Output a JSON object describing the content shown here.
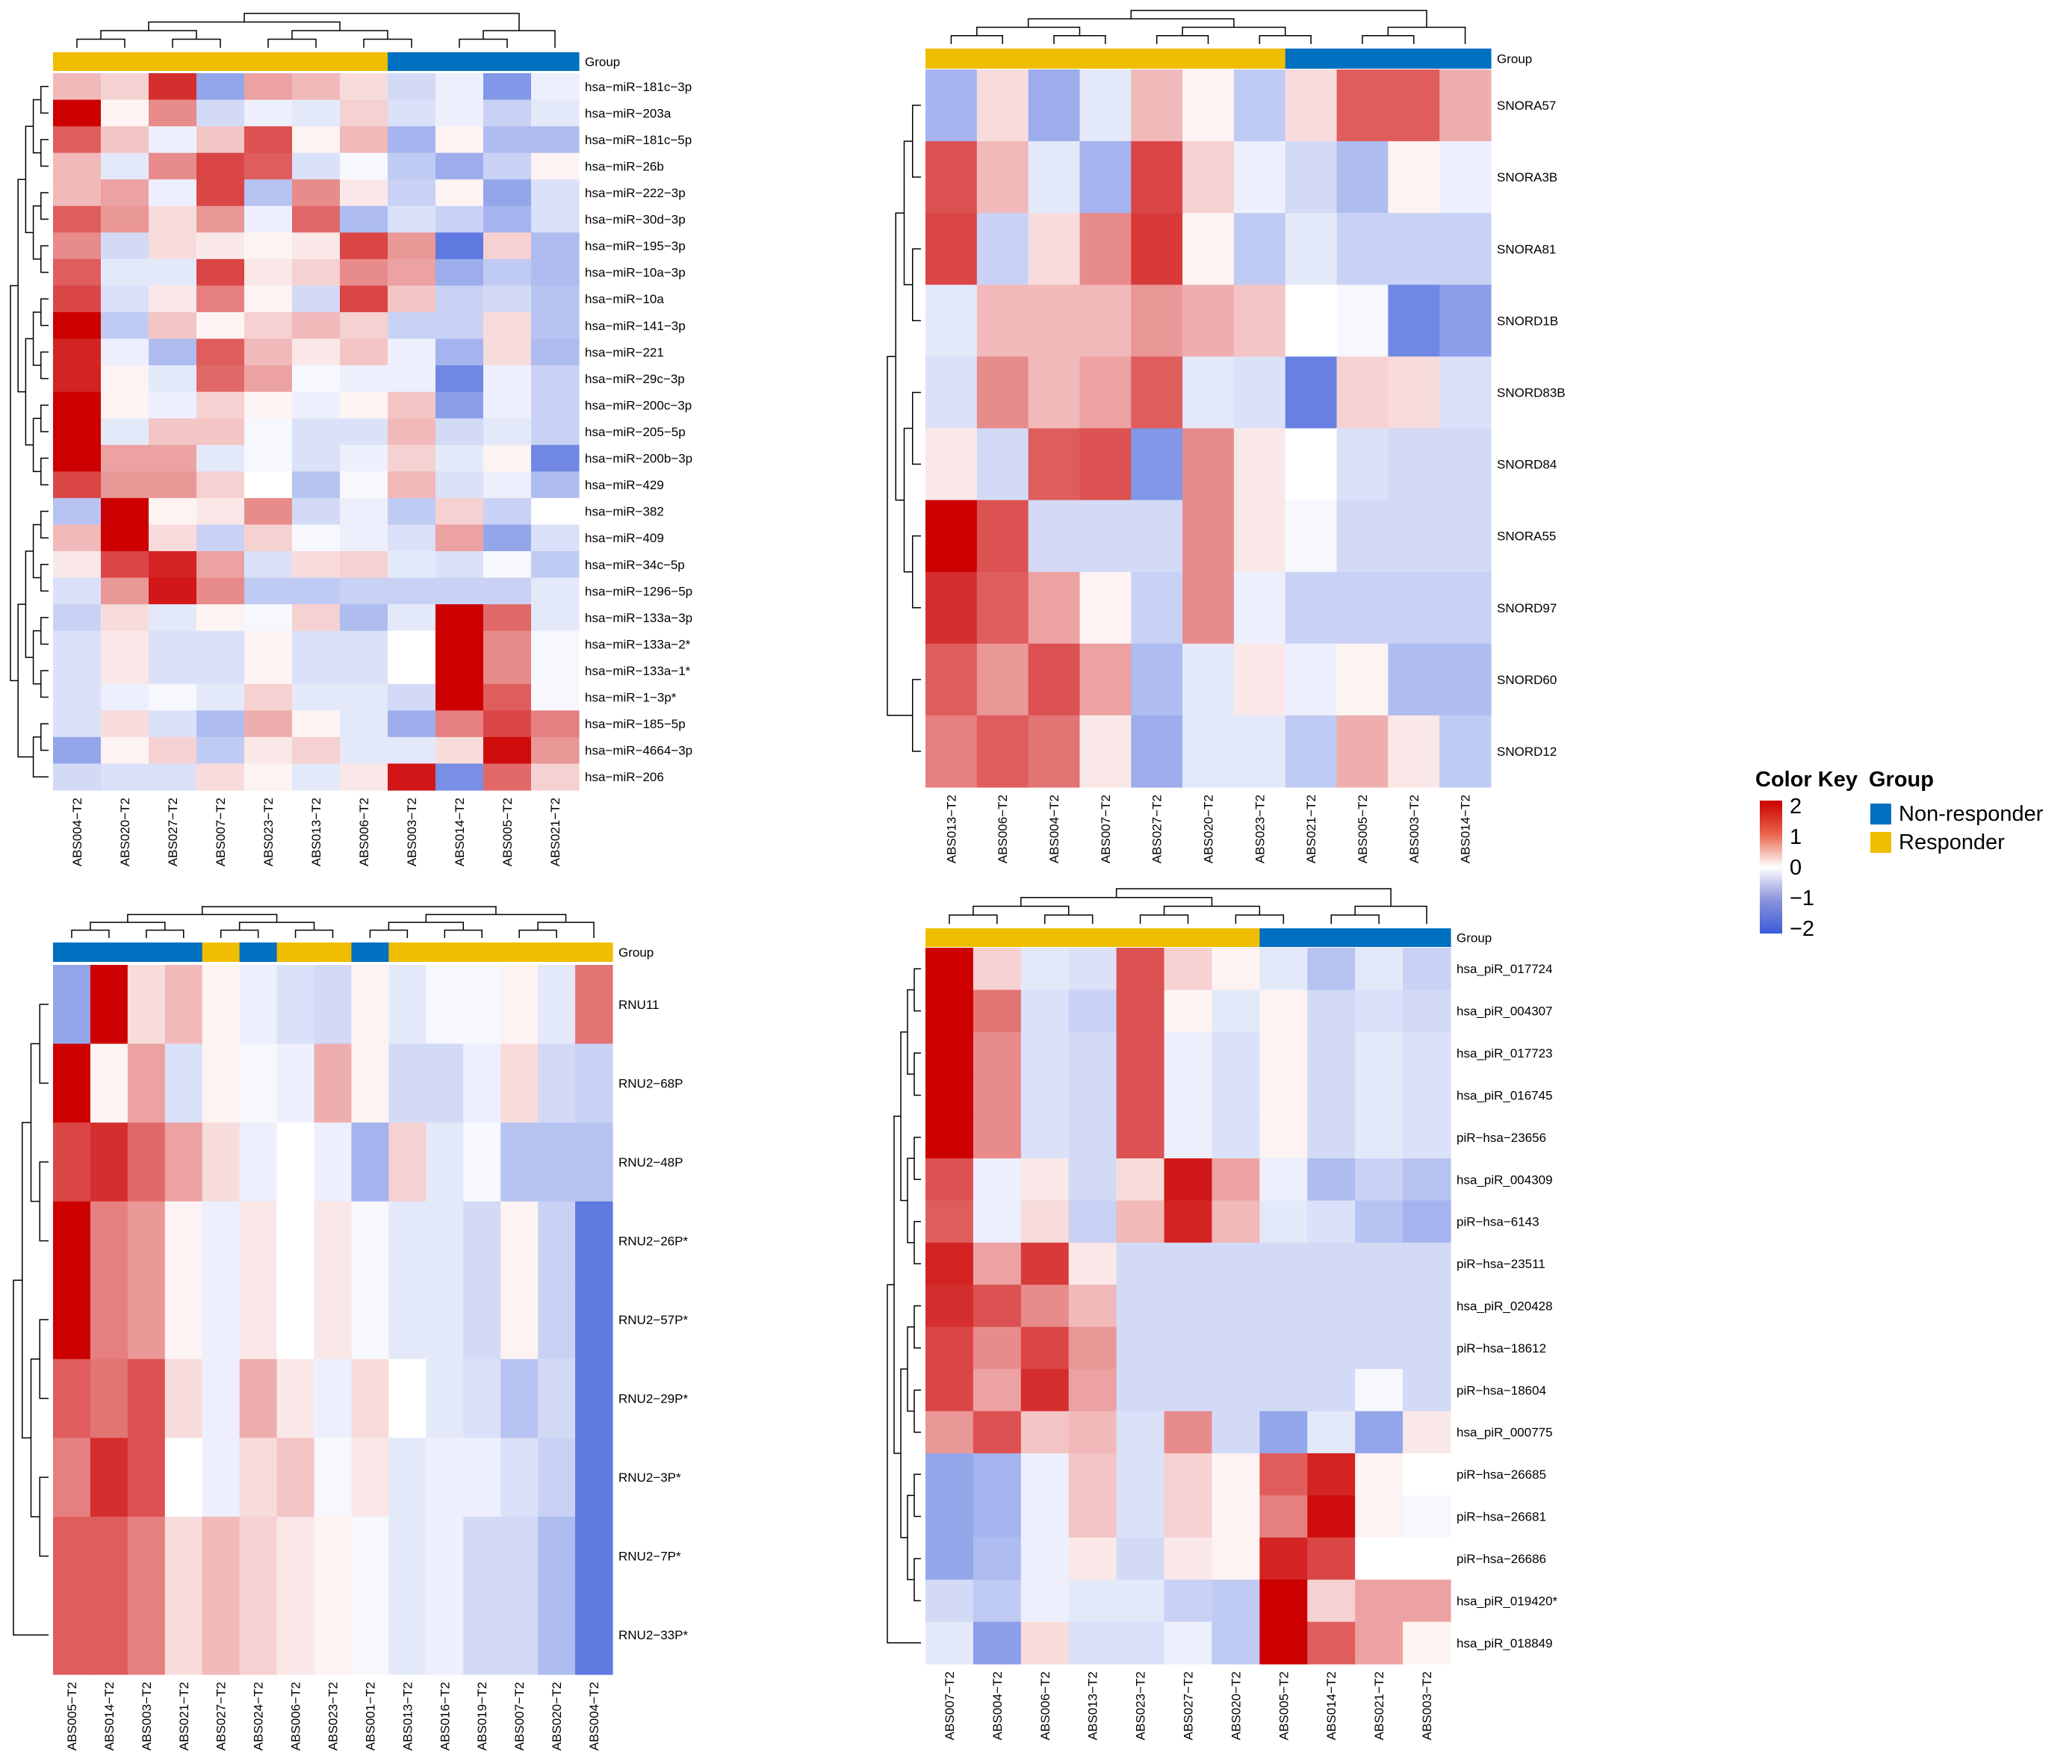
{
  "colors": {
    "responder": "#F0BE00",
    "non_responder": "#0070C0",
    "low": "#3A5BD9",
    "mid": "#FFFFFF",
    "high": "#CC0000"
  },
  "legend": {
    "color_key_title": "Color Key",
    "color_key_ticks": [
      "2",
      "1",
      "0",
      "−1",
      "−2"
    ],
    "group_title": "Group",
    "group_items": [
      {
        "label": "Non-responder",
        "color": "#0070C0"
      },
      {
        "label": "Responder",
        "color": "#F0BE00"
      }
    ]
  },
  "chart_data": [
    {
      "type": "heatmap",
      "group_label": "Group",
      "columns": [
        "ABS004−T2",
        "ABS020−T2",
        "ABS027−T2",
        "ABS007−T2",
        "ABS023−T2",
        "ABS013−T2",
        "ABS006−T2",
        "ABS003−T2",
        "ABS014−T2",
        "ABS005−T2",
        "ABS021−T2"
      ],
      "column_groups": [
        "R",
        "R",
        "R",
        "R",
        "R",
        "R",
        "R",
        "N",
        "N",
        "N",
        "N"
      ],
      "rows": [
        "hsa−miR−181c−3p",
        "hsa−miR−203a",
        "hsa−miR−181c−5p",
        "hsa−miR−26b",
        "hsa−miR−222−3p",
        "hsa−miR−30d−3p",
        "hsa−miR−195−3p",
        "hsa−miR−10a−3p",
        "hsa−miR−10a",
        "hsa−miR−141−3p",
        "hsa−miR−221",
        "hsa−miR−29c−3p",
        "hsa−miR−200c−3p",
        "hsa−miR−205−5p",
        "hsa−miR−200b−3p",
        "hsa−miR−429",
        "hsa−miR−382",
        "hsa−miR−409",
        "hsa−miR−34c−5p",
        "hsa−miR−1296−5p",
        "hsa−miR−133a−3p",
        "hsa−miR−133a−2*",
        "hsa−miR−133a−1*",
        "hsa−miR−1−3p*",
        "hsa−miR−185−5p",
        "hsa−miR−4664−3p",
        "hsa−miR−206"
      ],
      "values": [
        [
          0.6,
          0.4,
          1.8,
          -1.2,
          0.8,
          0.6,
          0.3,
          -0.5,
          -0.2,
          -1.4,
          -0.2
        ],
        [
          2.2,
          0.1,
          1.0,
          -0.5,
          -0.2,
          -0.3,
          0.4,
          -0.4,
          -0.2,
          -0.6,
          -0.3
        ],
        [
          1.4,
          0.5,
          -0.2,
          0.5,
          1.5,
          0.1,
          0.6,
          -1.0,
          0.1,
          -0.9,
          -0.9
        ],
        [
          0.6,
          -0.3,
          1.0,
          1.6,
          1.4,
          -0.4,
          -0.1,
          -0.7,
          -1.1,
          -0.6,
          0.1
        ],
        [
          0.6,
          0.8,
          -0.2,
          1.6,
          -0.8,
          1.0,
          0.2,
          -0.6,
          0.1,
          -1.2,
          -0.4
        ],
        [
          1.4,
          0.9,
          0.3,
          0.9,
          -0.2,
          1.3,
          -0.9,
          -0.4,
          -0.6,
          -1.0,
          -0.4
        ],
        [
          1.0,
          -0.5,
          0.3,
          0.2,
          0.1,
          0.2,
          1.6,
          0.9,
          -1.8,
          0.4,
          -0.9
        ],
        [
          1.4,
          -0.3,
          -0.3,
          1.6,
          0.2,
          0.4,
          1.0,
          0.8,
          -1.1,
          -0.7,
          -0.9
        ],
        [
          1.6,
          -0.4,
          0.2,
          1.1,
          0.1,
          -0.5,
          1.6,
          0.5,
          -0.6,
          -0.5,
          -0.8
        ],
        [
          2.2,
          -0.7,
          0.5,
          0.1,
          0.4,
          0.6,
          0.4,
          -0.6,
          -0.6,
          0.3,
          -0.8
        ],
        [
          1.9,
          -0.2,
          -0.9,
          1.4,
          0.6,
          0.2,
          0.5,
          -0.2,
          -1.0,
          0.3,
          -0.9
        ],
        [
          1.9,
          0.1,
          -0.3,
          1.3,
          0.8,
          -0.1,
          -0.2,
          -0.2,
          -1.6,
          -0.2,
          -0.6
        ],
        [
          2.2,
          0.1,
          -0.2,
          0.4,
          0.1,
          -0.2,
          0.1,
          0.5,
          -1.3,
          -0.2,
          -0.6
        ],
        [
          2.2,
          -0.3,
          0.5,
          0.5,
          -0.1,
          -0.4,
          -0.4,
          0.6,
          -0.5,
          -0.3,
          -0.6
        ],
        [
          2.2,
          0.8,
          0.8,
          -0.3,
          -0.1,
          -0.4,
          -0.2,
          0.4,
          -0.3,
          0.1,
          -1.6
        ],
        [
          1.6,
          0.9,
          0.9,
          0.4,
          0.0,
          -0.8,
          -0.1,
          0.6,
          -0.4,
          -0.2,
          -0.9
        ],
        [
          -0.8,
          2.2,
          0.1,
          0.2,
          1.0,
          -0.5,
          -0.2,
          -0.7,
          0.4,
          -0.6,
          0.0
        ],
        [
          0.6,
          2.2,
          0.3,
          -0.6,
          0.4,
          -0.1,
          -0.2,
          -0.4,
          0.8,
          -1.2,
          -0.4
        ],
        [
          0.2,
          1.6,
          1.9,
          0.8,
          -0.4,
          0.3,
          0.4,
          -0.3,
          -0.4,
          -0.1,
          -0.7
        ],
        [
          -0.4,
          0.9,
          2.0,
          1.0,
          -0.7,
          -0.7,
          -0.6,
          -0.6,
          -0.6,
          -0.6,
          -0.3
        ],
        [
          -0.6,
          0.3,
          -0.3,
          0.1,
          -0.1,
          0.4,
          -0.9,
          -0.3,
          2.2,
          1.3,
          -0.3
        ],
        [
          -0.4,
          0.2,
          -0.4,
          -0.4,
          0.1,
          -0.4,
          -0.4,
          0.0,
          2.2,
          1.0,
          -0.1
        ],
        [
          -0.4,
          0.2,
          -0.4,
          -0.4,
          0.1,
          -0.4,
          -0.4,
          0.0,
          2.2,
          1.0,
          -0.1
        ],
        [
          -0.4,
          -0.2,
          -0.1,
          -0.3,
          0.4,
          -0.3,
          -0.3,
          -0.5,
          2.2,
          1.4,
          -0.1
        ],
        [
          -0.4,
          0.3,
          -0.4,
          -0.9,
          0.7,
          0.1,
          -0.3,
          -1.1,
          1.1,
          1.6,
          1.1
        ],
        [
          -1.2,
          0.1,
          0.4,
          -0.7,
          0.2,
          0.4,
          -0.3,
          -0.3,
          0.3,
          2.1,
          0.9
        ],
        [
          -0.5,
          -0.4,
          -0.4,
          0.3,
          0.1,
          -0.3,
          0.2,
          2.0,
          -1.5,
          1.3,
          0.4
        ]
      ]
    },
    {
      "type": "heatmap",
      "group_label": "Group",
      "columns": [
        "ABS013−T2",
        "ABS006−T2",
        "ABS004−T2",
        "ABS007−T2",
        "ABS027−T2",
        "ABS020−T2",
        "ABS023−T2",
        "ABS021−T2",
        "ABS005−T2",
        "ABS003−T2",
        "ABS014−T2"
      ],
      "column_groups": [
        "R",
        "R",
        "R",
        "R",
        "R",
        "R",
        "R",
        "N",
        "N",
        "N",
        "N"
      ],
      "rows": [
        "SNORA57",
        "SNORA3B",
        "SNORA81",
        "SNORD1B",
        "SNORD83B",
        "SNORD84",
        "SNORA55",
        "SNORD97",
        "SNORD60",
        "SNORD12"
      ],
      "values": [
        [
          -1.0,
          0.3,
          -1.1,
          -0.3,
          0.6,
          0.1,
          -0.7,
          0.3,
          1.4,
          1.4,
          0.7
        ],
        [
          1.5,
          0.6,
          -0.3,
          -1.0,
          1.6,
          0.4,
          -0.2,
          -0.5,
          -0.9,
          0.1,
          -0.2
        ],
        [
          1.6,
          -0.6,
          0.3,
          1.0,
          1.7,
          0.1,
          -0.7,
          -0.3,
          -0.6,
          -0.6,
          -0.6
        ],
        [
          -0.3,
          0.6,
          0.6,
          0.6,
          0.9,
          0.7,
          0.5,
          0.0,
          -0.1,
          -1.6,
          -1.3
        ],
        [
          -0.4,
          1.0,
          0.6,
          0.8,
          1.4,
          -0.3,
          -0.4,
          -1.7,
          0.4,
          0.3,
          -0.4
        ],
        [
          0.2,
          -0.5,
          1.4,
          1.5,
          -1.4,
          1.0,
          0.2,
          0.0,
          -0.4,
          -0.5,
          -0.5
        ],
        [
          2.2,
          1.5,
          -0.5,
          -0.5,
          -0.5,
          1.0,
          0.2,
          -0.1,
          -0.5,
          -0.5,
          -0.5
        ],
        [
          1.8,
          1.4,
          0.8,
          0.1,
          -0.6,
          1.0,
          -0.2,
          -0.6,
          -0.6,
          -0.6,
          -0.6
        ],
        [
          1.4,
          0.9,
          1.5,
          0.8,
          -0.9,
          -0.3,
          0.2,
          -0.2,
          0.1,
          -0.9,
          -0.9
        ],
        [
          1.1,
          1.4,
          1.2,
          0.2,
          -1.1,
          -0.3,
          -0.3,
          -0.7,
          0.7,
          0.2,
          -0.7
        ]
      ]
    },
    {
      "type": "heatmap",
      "group_label": "Group",
      "columns": [
        "ABS005−T2",
        "ABS014−T2",
        "ABS003−T2",
        "ABS021−T2",
        "ABS027−T2",
        "ABS024−T2",
        "ABS006−T2",
        "ABS023−T2",
        "ABS001−T2",
        "ABS013−T2",
        "ABS016−T2",
        "ABS019−T2",
        "ABS007−T2",
        "ABS020−T2",
        "ABS004−T2"
      ],
      "column_groups": [
        "N",
        "N",
        "N",
        "N",
        "R",
        "N",
        "R",
        "R",
        "N",
        "R",
        "R",
        "R",
        "R",
        "R",
        "R"
      ],
      "rows": [
        "RNU11",
        "RNU2−68P",
        "RNU2−48P",
        "RNU2−26P*",
        "RNU2−57P*",
        "RNU2−29P*",
        "RNU2−3P*",
        "RNU2−7P*",
        "RNU2−33P*"
      ],
      "values": [
        [
          -1.2,
          2.2,
          0.3,
          0.6,
          0.1,
          -0.2,
          -0.4,
          -0.5,
          0.1,
          -0.3,
          -0.1,
          -0.1,
          0.1,
          -0.3,
          1.2
        ],
        [
          2.2,
          0.1,
          0.8,
          -0.4,
          0.1,
          -0.1,
          -0.2,
          0.7,
          0.1,
          -0.5,
          -0.5,
          -0.2,
          0.3,
          -0.5,
          -0.6
        ],
        [
          1.6,
          1.8,
          1.3,
          0.8,
          0.3,
          -0.2,
          0.0,
          -0.2,
          -1.0,
          0.4,
          -0.3,
          -0.1,
          -0.8,
          -0.8,
          -0.8
        ],
        [
          2.2,
          1.1,
          0.9,
          0.1,
          -0.2,
          0.2,
          0.0,
          0.2,
          -0.1,
          -0.3,
          -0.3,
          -0.5,
          0.1,
          -0.6,
          -1.8
        ],
        [
          2.2,
          1.1,
          0.9,
          0.1,
          -0.2,
          0.2,
          0.0,
          0.2,
          -0.1,
          -0.3,
          -0.3,
          -0.5,
          0.1,
          -0.6,
          -1.8
        ],
        [
          1.4,
          1.2,
          1.5,
          0.3,
          -0.2,
          0.7,
          0.2,
          -0.2,
          0.3,
          0.0,
          -0.3,
          -0.4,
          -0.8,
          -0.5,
          -1.8
        ],
        [
          1.1,
          1.8,
          1.5,
          0.0,
          -0.2,
          0.3,
          0.5,
          -0.1,
          0.2,
          -0.3,
          -0.2,
          -0.2,
          -0.4,
          -0.6,
          -1.8
        ],
        [
          1.4,
          1.4,
          1.1,
          0.3,
          0.6,
          0.4,
          0.2,
          0.1,
          -0.1,
          -0.3,
          -0.2,
          -0.5,
          -0.5,
          -0.9,
          -1.8
        ],
        [
          1.4,
          1.4,
          1.1,
          0.3,
          0.6,
          0.4,
          0.2,
          0.1,
          -0.1,
          -0.3,
          -0.2,
          -0.5,
          -0.5,
          -0.9,
          -1.8
        ]
      ]
    },
    {
      "type": "heatmap",
      "group_label": "Group",
      "columns": [
        "ABS007−T2",
        "ABS004−T2",
        "ABS006−T2",
        "ABS013−T2",
        "ABS023−T2",
        "ABS027−T2",
        "ABS020−T2",
        "ABS005−T2",
        "ABS014−T2",
        "ABS021−T2",
        "ABS003−T2"
      ],
      "column_groups": [
        "R",
        "R",
        "R",
        "R",
        "R",
        "R",
        "R",
        "N",
        "N",
        "N",
        "N"
      ],
      "rows": [
        "hsa_piR_017724",
        "hsa_piR_004307",
        "hsa_piR_017723",
        "hsa_piR_016745",
        "piR−hsa−23656",
        "hsa_piR_004309",
        "piR−hsa−6143",
        "piR−hsa−23511",
        "hsa_piR_020428",
        "piR−hsa−18612",
        "piR−hsa−18604",
        "hsa_piR_000775",
        "piR−hsa−26685",
        "piR−hsa−26681",
        "piR−hsa−26686",
        "hsa_piR_019420*",
        "hsa_piR_018849"
      ],
      "values": [
        [
          2.2,
          0.4,
          -0.3,
          -0.4,
          1.5,
          0.4,
          0.1,
          -0.3,
          -0.8,
          -0.3,
          -0.6
        ],
        [
          2.2,
          1.2,
          -0.4,
          -0.6,
          1.5,
          0.1,
          -0.3,
          0.1,
          -0.5,
          -0.4,
          -0.5
        ],
        [
          2.2,
          1.0,
          -0.4,
          -0.5,
          1.5,
          -0.2,
          -0.4,
          0.1,
          -0.5,
          -0.3,
          -0.4
        ],
        [
          2.2,
          1.0,
          -0.4,
          -0.5,
          1.5,
          -0.2,
          -0.4,
          0.1,
          -0.5,
          -0.3,
          -0.4
        ],
        [
          2.2,
          1.0,
          -0.4,
          -0.5,
          1.5,
          -0.2,
          -0.4,
          0.1,
          -0.5,
          -0.3,
          -0.4
        ],
        [
          1.5,
          -0.2,
          0.2,
          -0.5,
          0.3,
          2.0,
          0.8,
          -0.2,
          -0.9,
          -0.6,
          -0.8
        ],
        [
          1.4,
          -0.2,
          0.3,
          -0.6,
          0.6,
          1.9,
          0.6,
          -0.3,
          -0.4,
          -0.8,
          -1.0
        ],
        [
          1.9,
          0.8,
          1.7,
          0.2,
          -0.5,
          -0.5,
          -0.5,
          -0.5,
          -0.5,
          -0.5,
          -0.5
        ],
        [
          1.8,
          1.5,
          1.0,
          0.6,
          -0.5,
          -0.5,
          -0.5,
          -0.5,
          -0.5,
          -0.5,
          -0.5
        ],
        [
          1.6,
          1.0,
          1.6,
          0.9,
          -0.5,
          -0.5,
          -0.5,
          -0.5,
          -0.5,
          -0.5,
          -0.5
        ],
        [
          1.6,
          0.8,
          1.8,
          0.8,
          -0.5,
          -0.5,
          -0.5,
          -0.5,
          -0.5,
          -0.1,
          -0.5
        ],
        [
          0.9,
          1.5,
          0.5,
          0.6,
          -0.4,
          1.0,
          -0.5,
          -1.2,
          -0.3,
          -1.2,
          0.2
        ],
        [
          -1.2,
          -1.0,
          -0.2,
          0.5,
          -0.4,
          0.4,
          0.1,
          1.4,
          1.9,
          0.1,
          0.0
        ],
        [
          -1.2,
          -1.0,
          -0.2,
          0.5,
          -0.4,
          0.4,
          0.1,
          1.1,
          2.1,
          0.1,
          -0.1
        ],
        [
          -1.2,
          -0.9,
          -0.2,
          0.2,
          -0.5,
          0.2,
          0.1,
          1.9,
          1.6,
          0.0,
          0.0
        ],
        [
          -0.5,
          -0.7,
          -0.2,
          -0.3,
          -0.3,
          -0.6,
          -0.7,
          2.2,
          0.4,
          0.8,
          0.8
        ],
        [
          -0.3,
          -1.3,
          0.3,
          -0.4,
          -0.4,
          -0.2,
          -0.7,
          2.2,
          1.4,
          0.8,
          0.1
        ]
      ]
    }
  ]
}
